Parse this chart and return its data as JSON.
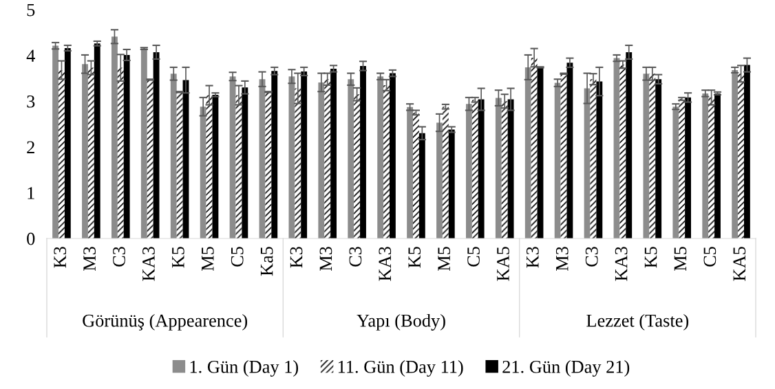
{
  "chart_data": {
    "type": "bar",
    "categories": [
      "K3",
      "M3",
      "C3",
      "KA3",
      "K5",
      "M5",
      "C5",
      "Ka5",
      "K3",
      "M3",
      "C3",
      "KA3",
      "K5",
      "M5",
      "C5",
      "KA5",
      "K3",
      "M3",
      "C3",
      "KA3",
      "K5",
      "M5",
      "C5",
      "KA5"
    ],
    "series": [
      {
        "name": "1. Gün (Day 1)",
        "color": "#8c8c8c",
        "values": [
          4.21,
          3.81,
          4.41,
          4.15,
          3.6,
          2.88,
          3.54,
          3.48,
          3.54,
          3.41,
          3.48,
          3.54,
          2.87,
          2.53,
          2.94,
          3.07,
          3.74,
          3.4,
          3.28,
          3.94,
          3.6,
          2.88,
          3.17,
          3.68
        ],
        "errors": [
          0.07,
          0.2,
          0.15,
          0.02,
          0.14,
          0.2,
          0.09,
          0.16,
          0.15,
          0.2,
          0.13,
          0.07,
          0.07,
          0.19,
          0.14,
          0.17,
          0.27,
          0.08,
          0.33,
          0.07,
          0.14,
          0.06,
          0.07,
          0.06
        ]
      },
      {
        "name": "11. Gün (Day 11)",
        "color": "#ffffff",
        "values": [
          3.68,
          3.73,
          3.73,
          3.47,
          3.2,
          3.13,
          3.13,
          3.2,
          3.28,
          3.48,
          3.15,
          3.35,
          2.75,
          2.88,
          3.03,
          3.0,
          3.95,
          3.6,
          3.48,
          3.8,
          3.6,
          3.05,
          3.08,
          3.6
        ],
        "errors": [
          0.2,
          0.15,
          0.29,
          0.01,
          0.01,
          0.21,
          0.21,
          0.01,
          0.33,
          0.13,
          0.14,
          0.12,
          0.05,
          0.05,
          0.05,
          0.15,
          0.2,
          0.01,
          0.12,
          0.08,
          0.14,
          0.03,
          0.16,
          0.18
        ]
      },
      {
        "name": "21. Gün (Day 21)",
        "color": "#000000",
        "values": [
          4.16,
          4.26,
          4.01,
          4.07,
          3.46,
          3.14,
          3.3,
          3.66,
          3.65,
          3.71,
          3.77,
          3.61,
          2.3,
          2.38,
          3.04,
          3.04,
          3.74,
          3.84,
          3.43,
          4.07,
          3.48,
          3.08,
          3.17,
          3.79
        ],
        "errors": [
          0.06,
          0.05,
          0.12,
          0.15,
          0.28,
          0.04,
          0.14,
          0.08,
          0.09,
          0.07,
          0.1,
          0.07,
          0.14,
          0.06,
          0.24,
          0.24,
          0.01,
          0.1,
          0.31,
          0.15,
          0.1,
          0.1,
          0.03,
          0.15
        ]
      }
    ],
    "annotations": [
      "Görünüş (Appearence)",
      "Yapı (Body)",
      "Lezzet (Taste)"
    ],
    "ylim": [
      0,
      5
    ],
    "yticks": [
      0,
      1,
      2,
      3,
      4,
      5
    ],
    "grid": false,
    "legend": "bottom"
  }
}
